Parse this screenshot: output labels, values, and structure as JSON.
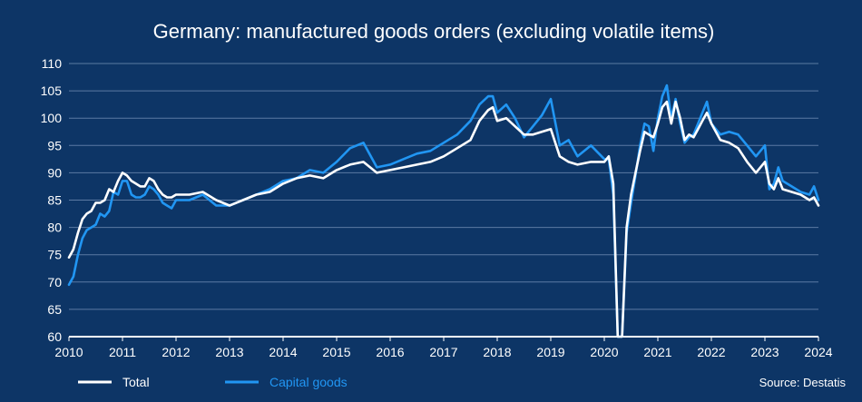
{
  "chart_data": {
    "type": "line",
    "title": "Germany: manufactured goods orders (excluding volatile items)",
    "source": "Source: Destatis",
    "xlabel": "",
    "ylabel": "",
    "xlim": [
      2010,
      2024
    ],
    "ylim": [
      60,
      110
    ],
    "x_ticks": [
      "2010",
      "2011",
      "2012",
      "2013",
      "2014",
      "2015",
      "2016",
      "2017",
      "2018",
      "2019",
      "2020",
      "2021",
      "2022",
      "2023",
      "2024"
    ],
    "y_ticks": [
      "60",
      "65",
      "70",
      "75",
      "80",
      "85",
      "90",
      "95",
      "100",
      "105",
      "110"
    ],
    "grid": true,
    "legend_position": "bottom-left",
    "colors": {
      "background": "#0d3566",
      "grid": "#5b7aa3",
      "total": "#ffffff",
      "capital": "#2196f3"
    },
    "series": [
      {
        "name": "Total",
        "x": [
          2010.0,
          2010.083,
          2010.167,
          2010.25,
          2010.333,
          2010.417,
          2010.5,
          2010.583,
          2010.667,
          2010.75,
          2010.833,
          2010.917,
          2011.0,
          2011.083,
          2011.167,
          2011.25,
          2011.333,
          2011.417,
          2011.5,
          2011.583,
          2011.667,
          2011.75,
          2011.833,
          2011.917,
          2012.0,
          2012.25,
          2012.5,
          2012.75,
          2013.0,
          2013.25,
          2013.5,
          2013.75,
          2014.0,
          2014.25,
          2014.5,
          2014.75,
          2015.0,
          2015.25,
          2015.5,
          2015.75,
          2016.0,
          2016.25,
          2016.5,
          2016.75,
          2017.0,
          2017.25,
          2017.5,
          2017.667,
          2017.833,
          2017.917,
          2018.0,
          2018.167,
          2018.333,
          2018.5,
          2018.667,
          2018.833,
          2019.0,
          2019.167,
          2019.333,
          2019.5,
          2019.75,
          2020.0,
          2020.083,
          2020.167,
          2020.25,
          2020.333,
          2020.417,
          2020.5,
          2020.583,
          2020.667,
          2020.75,
          2020.833,
          2020.917,
          2021.0,
          2021.083,
          2021.167,
          2021.25,
          2021.333,
          2021.417,
          2021.5,
          2021.583,
          2021.667,
          2021.75,
          2021.833,
          2021.917,
          2022.0,
          2022.167,
          2022.333,
          2022.5,
          2022.667,
          2022.833,
          2023.0,
          2023.083,
          2023.167,
          2023.25,
          2023.333,
          2023.5,
          2023.667,
          2023.833,
          2023.917,
          2024.0
        ],
        "values": [
          74.5,
          76,
          79,
          81.5,
          82.5,
          83,
          84.5,
          84.5,
          85,
          87,
          86.5,
          88.5,
          90,
          89.5,
          88.5,
          88,
          87.5,
          87.5,
          89,
          88.5,
          87,
          86,
          85.5,
          85.5,
          86,
          86,
          86.5,
          85,
          84,
          85,
          86,
          86.5,
          88,
          89,
          89.5,
          89,
          90.5,
          91.5,
          92,
          90,
          90.5,
          91,
          91.5,
          92,
          93,
          94.5,
          96,
          99.5,
          101.5,
          102,
          99.5,
          100,
          98.5,
          97,
          97,
          97.5,
          98,
          93,
          92,
          91.5,
          92,
          92,
          93,
          88,
          60,
          60,
          80,
          86,
          90,
          94,
          97.5,
          97,
          96.5,
          99,
          102,
          103,
          99,
          103,
          100,
          96,
          97,
          96.5,
          98,
          99.5,
          101,
          99,
          96,
          95.5,
          94.5,
          92,
          90,
          92,
          88,
          87,
          89,
          87,
          86.5,
          86,
          85,
          85.5,
          84
        ]
      },
      {
        "name": "Capital goods",
        "x": [
          2010.0,
          2010.083,
          2010.167,
          2010.25,
          2010.333,
          2010.417,
          2010.5,
          2010.583,
          2010.667,
          2010.75,
          2010.833,
          2010.917,
          2011.0,
          2011.083,
          2011.167,
          2011.25,
          2011.333,
          2011.417,
          2011.5,
          2011.583,
          2011.667,
          2011.75,
          2011.833,
          2011.917,
          2012.0,
          2012.25,
          2012.5,
          2012.75,
          2013.0,
          2013.25,
          2013.5,
          2013.75,
          2014.0,
          2014.25,
          2014.5,
          2014.75,
          2015.0,
          2015.25,
          2015.5,
          2015.75,
          2016.0,
          2016.25,
          2016.5,
          2016.75,
          2017.0,
          2017.25,
          2017.5,
          2017.667,
          2017.833,
          2017.917,
          2018.0,
          2018.167,
          2018.333,
          2018.5,
          2018.667,
          2018.833,
          2019.0,
          2019.167,
          2019.333,
          2019.5,
          2019.75,
          2020.0,
          2020.083,
          2020.167,
          2020.25,
          2020.333,
          2020.417,
          2020.5,
          2020.583,
          2020.667,
          2020.75,
          2020.833,
          2020.917,
          2021.0,
          2021.083,
          2021.167,
          2021.25,
          2021.333,
          2021.417,
          2021.5,
          2021.583,
          2021.667,
          2021.75,
          2021.833,
          2021.917,
          2022.0,
          2022.167,
          2022.333,
          2022.5,
          2022.667,
          2022.833,
          2023.0,
          2023.083,
          2023.167,
          2023.25,
          2023.333,
          2023.5,
          2023.667,
          2023.833,
          2023.917,
          2024.0
        ],
        "values": [
          69.5,
          71,
          75,
          78,
          79.5,
          80,
          80.5,
          82.5,
          82,
          83,
          86.5,
          86,
          88.5,
          88.5,
          86,
          85.5,
          85.5,
          86,
          87.5,
          87,
          86,
          84.5,
          84,
          83.5,
          85,
          85,
          86,
          84,
          84,
          85,
          86,
          87,
          88.5,
          89,
          90.5,
          90,
          92,
          94.5,
          95.5,
          91,
          91.5,
          92.5,
          93.5,
          94,
          95.5,
          97,
          99.5,
          102.5,
          104,
          104,
          101,
          102.5,
          100,
          96.5,
          98.5,
          100.5,
          103.5,
          95,
          96,
          93,
          95,
          92.5,
          92.5,
          86,
          60,
          60,
          79,
          84.5,
          89.5,
          95,
          99,
          98.5,
          94,
          100,
          104,
          106,
          100,
          103.5,
          99,
          95.5,
          96.5,
          97,
          99,
          101,
          103,
          99,
          97,
          97.5,
          97,
          95,
          93,
          95,
          87,
          88,
          91,
          88.5,
          87.5,
          86.5,
          86,
          87.5,
          85
        ]
      }
    ]
  }
}
